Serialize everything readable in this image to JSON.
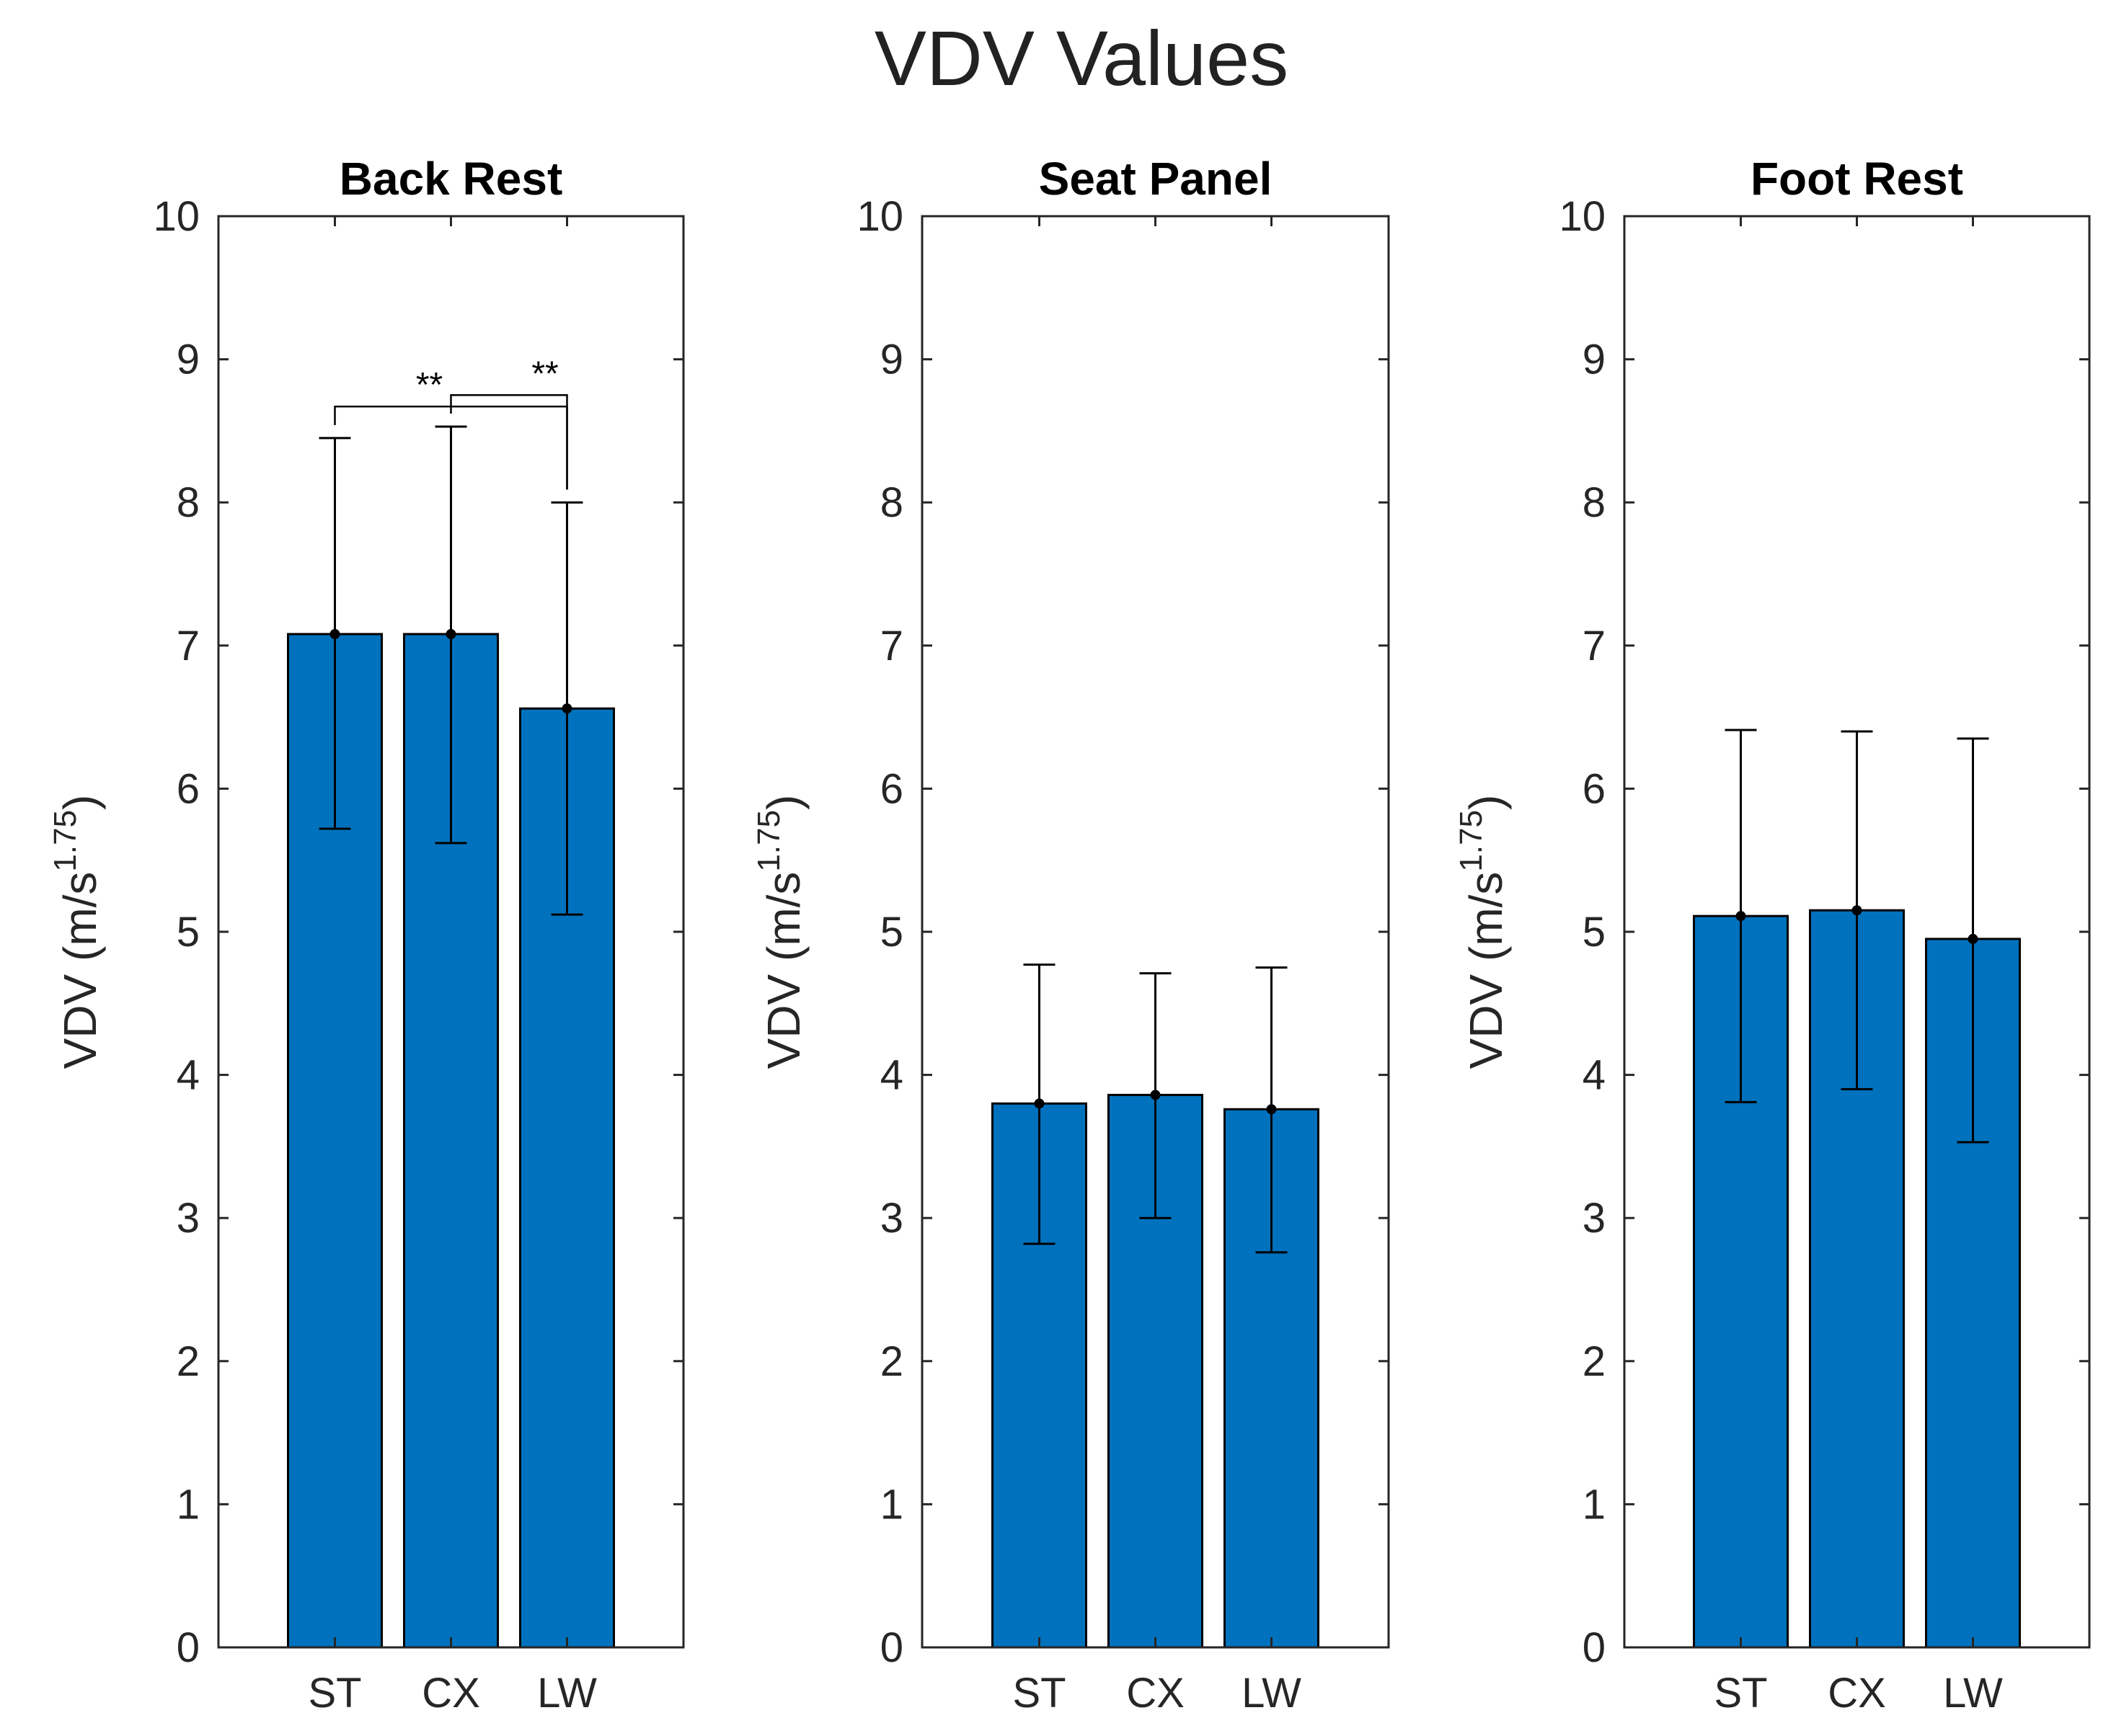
{
  "chart_data": {
    "title": "VDV Values",
    "type": "bar",
    "bar_color": "#0072BD",
    "panels": [
      {
        "title": "Back Rest",
        "type": "bar",
        "categories": [
          "ST",
          "CX",
          "LW"
        ],
        "values": [
          7.08,
          7.08,
          6.56
        ],
        "error_upper": [
          8.45,
          8.53,
          8.0
        ],
        "error_lower": [
          5.72,
          5.62,
          5.12
        ],
        "ylabel_main": "VDV (m/s",
        "ylabel_sup": "1.75",
        "ylabel_close": ")",
        "ylim": [
          0,
          10
        ],
        "yticks": [
          "0",
          "1",
          "2",
          "3",
          "4",
          "5",
          "6",
          "7",
          "8",
          "9",
          "10"
        ],
        "significance": [
          {
            "from": "ST",
            "to": "LW",
            "label": "**",
            "y": 8.67
          },
          {
            "from": "CX",
            "to": "LW",
            "label": "**",
            "y": 8.75
          }
        ]
      },
      {
        "title": "Seat Panel",
        "type": "bar",
        "categories": [
          "ST",
          "CX",
          "LW"
        ],
        "values": [
          3.8,
          3.86,
          3.76
        ],
        "error_upper": [
          4.77,
          4.71,
          4.75
        ],
        "error_lower": [
          2.82,
          3.0,
          2.76
        ],
        "ylabel_main": "VDV (m/s",
        "ylabel_sup": "1.75",
        "ylabel_close": ")",
        "ylim": [
          0,
          10
        ],
        "yticks": [
          "0",
          "1",
          "2",
          "3",
          "4",
          "5",
          "6",
          "7",
          "8",
          "9",
          "10"
        ],
        "significance": []
      },
      {
        "title": "Foot Rest",
        "type": "bar",
        "categories": [
          "ST",
          "CX",
          "LW"
        ],
        "values": [
          5.11,
          5.15,
          4.95
        ],
        "error_upper": [
          6.41,
          6.4,
          6.35
        ],
        "error_lower": [
          3.81,
          3.9,
          3.53
        ],
        "ylabel_main": "VDV (m/s",
        "ylabel_sup": "1.75",
        "ylabel_close": ")",
        "ylim": [
          0,
          10
        ],
        "yticks": [
          "0",
          "1",
          "2",
          "3",
          "4",
          "5",
          "6",
          "7",
          "8",
          "9",
          "10"
        ],
        "significance": []
      }
    ]
  }
}
